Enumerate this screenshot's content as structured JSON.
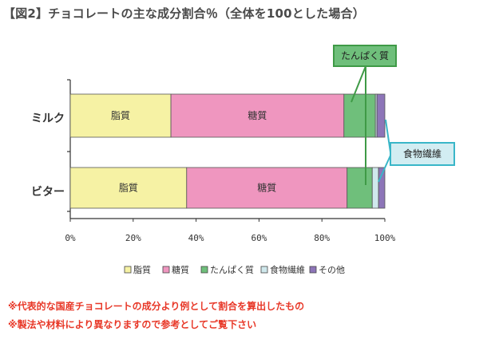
{
  "title": "【図2】チョコレートの主な成分割合％（全体を100とした場合）",
  "notes": [
    "※代表的な国産チョコレートの成分より例として割合を算出したもの",
    "※製法や材料により異なりますので参考としてご覧下さい"
  ],
  "callouts": {
    "protein": "たんぱく質",
    "fiber": "食物繊維"
  },
  "colors": {
    "fat": "#f6f2a4",
    "sugar": "#ef96bf",
    "protein": "#6fbf7b",
    "fiber": "#cfe8ec",
    "other": "#8d75b8",
    "callout_green_border": "#3f9a46",
    "callout_green_bg": "#6fbf7b",
    "callout_cyan_border": "#39b6c8",
    "callout_cyan_bg": "#d2edf2"
  },
  "chart_data": {
    "type": "bar",
    "orientation": "horizontal",
    "stacked": true,
    "categories": [
      "ミルク",
      "ビター"
    ],
    "series": [
      {
        "name": "脂質",
        "values": [
          32,
          37
        ]
      },
      {
        "name": "糖質",
        "values": [
          55,
          51
        ]
      },
      {
        "name": "たんぱく質",
        "values": [
          10,
          8
        ]
      },
      {
        "name": "食物繊維",
        "values": [
          0.5,
          2
        ]
      },
      {
        "name": "その他",
        "values": [
          2.5,
          2
        ]
      }
    ],
    "segment_labels": [
      "脂質",
      "糖質"
    ],
    "x_ticks": [
      "0%",
      "20%",
      "40%",
      "60%",
      "80%",
      "100%"
    ],
    "xlim": [
      0,
      100
    ],
    "legend": [
      "脂質",
      "糖質",
      "たんぱく質",
      "食物繊維",
      "その他"
    ],
    "legend_position": "bottom"
  }
}
